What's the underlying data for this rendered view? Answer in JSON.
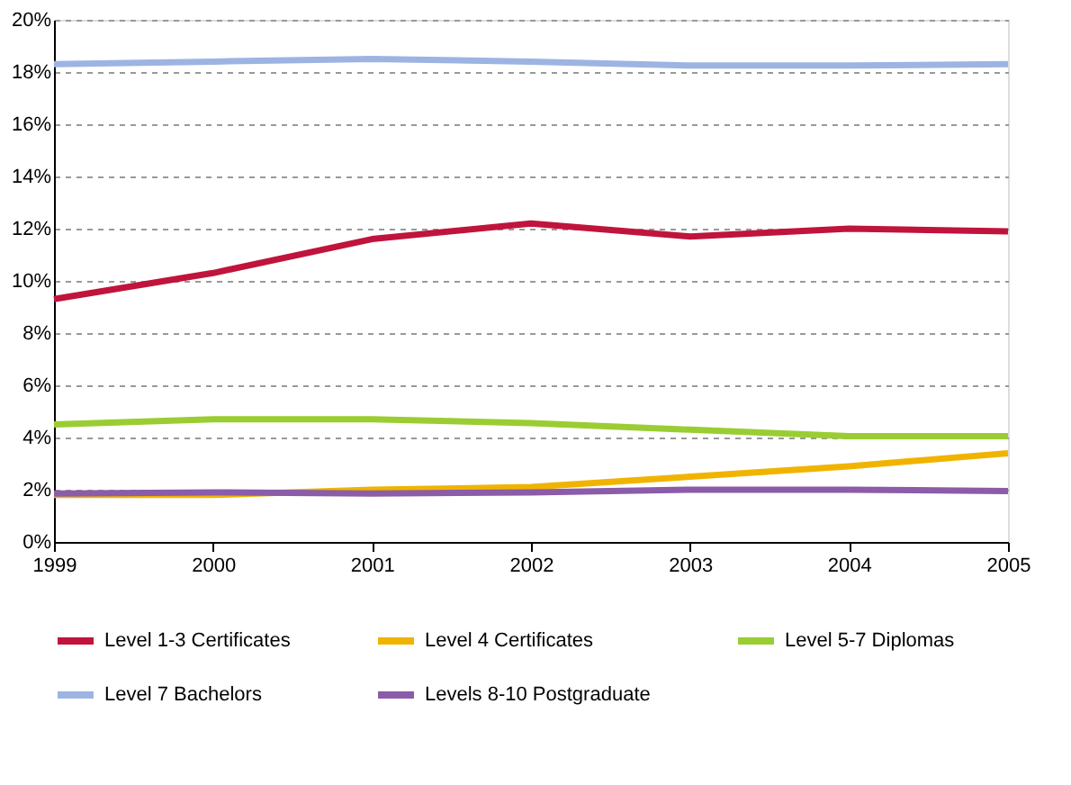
{
  "chart_data": {
    "type": "line",
    "x": [
      1999,
      2000,
      2001,
      2002,
      2003,
      2004,
      2005
    ],
    "xlim": [
      1999,
      2005
    ],
    "xticks": [
      1999,
      2000,
      2001,
      2002,
      2003,
      2004,
      2005
    ],
    "ylim": [
      0,
      20
    ],
    "yticks": [
      {
        "value": 0,
        "label": "0%"
      },
      {
        "value": 2,
        "label": "2%"
      },
      {
        "value": 4,
        "label": "4%"
      },
      {
        "value": 6,
        "label": "6%"
      },
      {
        "value": 8,
        "label": "8%"
      },
      {
        "value": 10,
        "label": "10%"
      },
      {
        "value": 12,
        "label": "12%"
      },
      {
        "value": 14,
        "label": "14%"
      },
      {
        "value": 16,
        "label": "16%"
      },
      {
        "value": 18,
        "label": "18%"
      },
      {
        "value": 20,
        "label": "20%"
      }
    ],
    "grid": "y",
    "legend": "bottom",
    "line_style": "solid",
    "marker": "none",
    "series": [
      {
        "name": "Level 1-3 Certificates",
        "color": "#c0143c",
        "values": [
          9.3,
          10.3,
          11.6,
          12.2,
          11.7,
          12.0,
          11.9
        ]
      },
      {
        "name": "Level 4 Certificates",
        "color": "#f0b400",
        "values": [
          1.8,
          1.8,
          2.0,
          2.1,
          2.5,
          2.9,
          3.4
        ]
      },
      {
        "name": "Level 5-7 Diplomas",
        "color": "#9acd32",
        "values": [
          4.5,
          4.7,
          4.7,
          4.55,
          4.3,
          4.05,
          4.05
        ]
      },
      {
        "name": "Level 7 Bachelors",
        "color": "#9db4e3",
        "values": [
          18.3,
          18.4,
          18.5,
          18.4,
          18.25,
          18.25,
          18.3
        ]
      },
      {
        "name": "Levels 8-10 Postgraduate",
        "color": "#8b5ca8",
        "values": [
          1.85,
          1.9,
          1.85,
          1.9,
          2.0,
          2.0,
          1.95
        ]
      }
    ]
  }
}
